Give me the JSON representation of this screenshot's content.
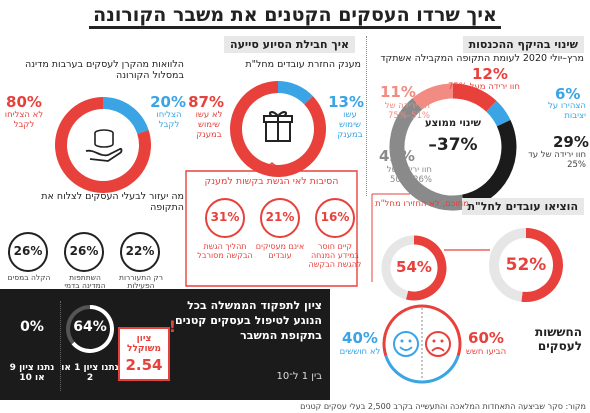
{
  "title": "איך שרדו העסקים הקטנים את משבר הקורונה",
  "colors": {
    "red": "#e8413c",
    "light_red": "#f28b82",
    "blue": "#3aa4e4",
    "dark": "#1b1b1b",
    "gray": "#8a8a8a",
    "olive": "#7d7d6b"
  },
  "revenue": {
    "header": "שינוי בהיקף ההכנסות",
    "subtitle": "מרץ–יולי 2020 לעומת התקופה המקבילה אשתקד",
    "center_label": "שינוי ממוצע",
    "center_value": "37%–",
    "items": [
      {
        "pct": "12%",
        "label": "חוו ירידה מעל 75%"
      },
      {
        "pct": "6%",
        "label": "הצהירו על יציבות"
      },
      {
        "pct": "29%",
        "label": "חוו ירידה של עד 25%"
      },
      {
        "pct": "42%",
        "label": "חוו ירידה של 26%–50%"
      },
      {
        "pct": "11%",
        "label": "חוו ירידה של 51%–75%"
      }
    ]
  },
  "survival": {
    "header": "איך חבילת הסיוע סייעה",
    "gift": {
      "title": "מענק החזרת עובדים מחל\"ת",
      "left_pct": "13%",
      "left_label": "עשו שימוש במענק",
      "right_pct": "87%",
      "right_label": "לא עשו שימוש במענק"
    },
    "loans": {
      "title": "הלוואות מהקרן לעסקים בערבות מדינה במסלול הקורונה",
      "left_pct": "20%",
      "left_label": "הצליחו לקבל",
      "right_pct": "80%",
      "right_label": "לא הצליחו לקבל"
    }
  },
  "reasons": {
    "title": "הסיבות לאי הגשת בקשות למענק",
    "items": [
      {
        "pct": "16%",
        "label": "קיים חוסר במידע המנחה להגשת הבקשה"
      },
      {
        "pct": "21%",
        "label": "אינם מעסיקים עובדים"
      },
      {
        "pct": "31%",
        "label": "תהליך הגשת הבקשה מסורבל"
      }
    ]
  },
  "help": {
    "title": "מה יעזור לבעלי העסקים לצלוח את התקופה",
    "items": [
      {
        "pct": "22%",
        "label": "רק התעוררות הפעילות הכלכלית במשק"
      },
      {
        "pct": "26%",
        "label": "השתתפות המדינה בדמי השכירות"
      },
      {
        "pct": "26%",
        "label": "הקלה במסים"
      }
    ]
  },
  "workers": {
    "header": "הוציאו עובדים לחל\"ת",
    "left_pct": "52%",
    "right_pct": "54%",
    "right_label": "מתוכם, לא החזירו מחל\"ת"
  },
  "fears": {
    "title": "החששות לעסקים",
    "left_pct": "40%",
    "left_label": "לא חוששים",
    "right_pct": "60%",
    "right_label": "הביעו חשש"
  },
  "score": {
    "text": "ציון לתפקוד הממשלה בכל הנוגע לטיפול בעסקים קטנים בתקופת המשבר",
    "scale": "בין 1 ל־10",
    "badge_label": "ציון משוקלל",
    "badge_value": "2.54",
    "items": [
      {
        "pct": "64%",
        "label": "נתנו ציון 1 או 2"
      },
      {
        "pct": "0%",
        "label": "נתנו ציון 9 או 10"
      }
    ]
  },
  "source": "מקור: סקר שביצעה התאחדות המלאכה והתעשייה בקרב 2,500 בעלי עסקים קטנים",
  "chart_data": [
    {
      "type": "pie",
      "title": "שינוי בהיקף ההכנסות",
      "categories": [
        "חוו ירידה מעל 75%",
        "הצהירו על יציבות",
        "חוו ירידה של עד 25%",
        "חוו ירידה של 26%–50%",
        "חוו ירידה של 51%–75%"
      ],
      "values": [
        12,
        6,
        29,
        42,
        11
      ]
    },
    {
      "type": "pie",
      "title": "מענק החזרת עובדים מחל\"ת",
      "categories": [
        "עשו שימוש במענק",
        "לא עשו שימוש במענק"
      ],
      "values": [
        13,
        87
      ]
    },
    {
      "type": "pie",
      "title": "הלוואות מהקרן לעסקים בערבות מדינה במסלול הקורונה",
      "categories": [
        "הצליחו לקבל",
        "לא הצליחו לקבל"
      ],
      "values": [
        20,
        80
      ]
    },
    {
      "type": "pie",
      "title": "הוציאו עובדים לחל\"ת",
      "values": [
        52
      ]
    },
    {
      "type": "pie",
      "title": "מתוכם, לא החזירו מחל\"ת",
      "values": [
        54
      ]
    },
    {
      "type": "pie",
      "title": "החששות לעסקים",
      "categories": [
        "לא חוששים",
        "הביעו חשש"
      ],
      "values": [
        40,
        60
      ]
    },
    {
      "type": "pie",
      "title": "ציון לתפקוד הממשלה",
      "categories": [
        "נתנו ציון 1 או 2",
        "נתנו ציון 9 או 10"
      ],
      "values": [
        64,
        0
      ]
    }
  ]
}
